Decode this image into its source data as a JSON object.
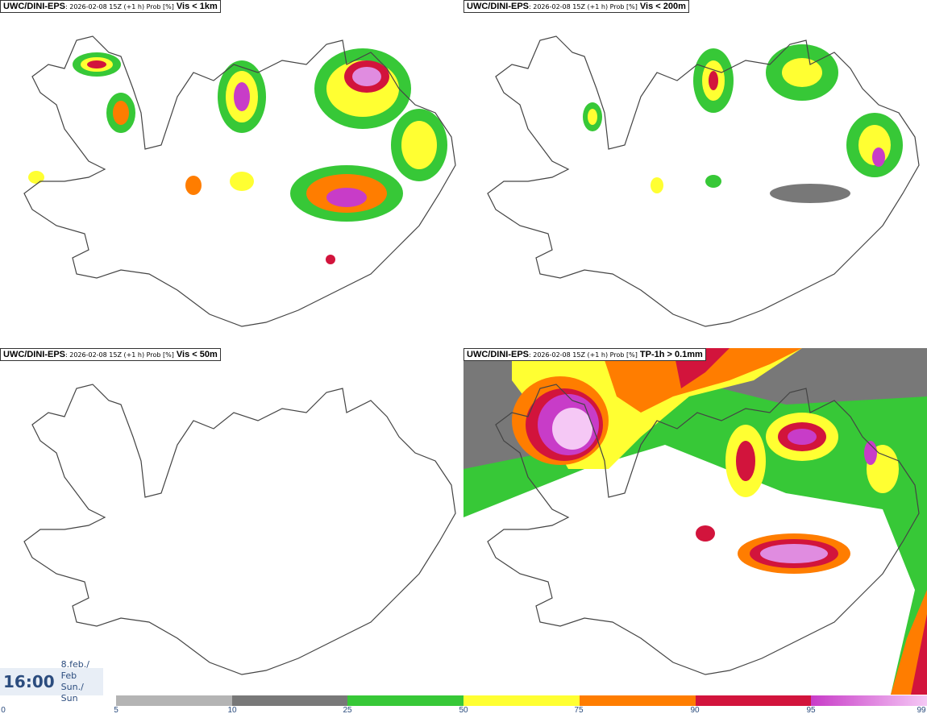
{
  "panels": [
    {
      "source": "UWC/DINI-EPS",
      "meta": ": 2026-02-08 15Z (+1 h) Prob [%]",
      "variable": "Vis < 1km"
    },
    {
      "source": "UWC/DINI-EPS",
      "meta": ": 2026-02-08 15Z (+1 h) Prob [%]",
      "variable": "Vis < 200m"
    },
    {
      "source": "UWC/DINI-EPS",
      "meta": ": 2026-02-08 15Z (+1 h) Prob [%]",
      "variable": "Vis < 50m"
    },
    {
      "source": "UWC/DINI-EPS",
      "meta": ": 2026-02-08 15Z (+1 h) Prob [%]",
      "variable": "TP-1h > 0.1mm"
    }
  ],
  "valid_time": {
    "time": "16:00",
    "date_line1": "8.feb./ Feb",
    "date_line2": "Sun./ Sun"
  },
  "legend": {
    "ticks": [
      "0",
      "5",
      "10",
      "25",
      "50",
      "75",
      "90",
      "95",
      "99"
    ],
    "colors": [
      "#b4b4b4",
      "#787878",
      "#37c837",
      "#ffff32",
      "#ff7d00",
      "#d2143c",
      "#c83cc8"
    ],
    "gradient_end": "#f5c8f5"
  }
}
